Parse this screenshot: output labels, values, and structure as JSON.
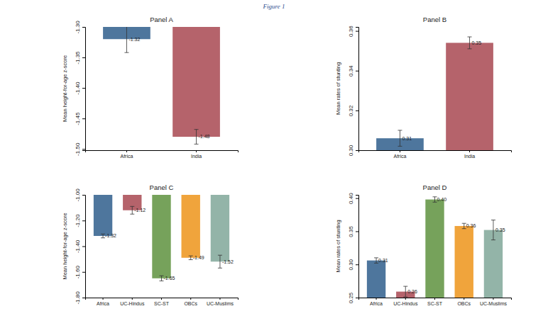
{
  "title": "Figure 1",
  "chart_data": [
    {
      "type": "bar",
      "title": "Panel A",
      "y_label": "Mean height-for-age z-score",
      "categories": [
        "Africa",
        "India"
      ],
      "values": [
        -1.32,
        -1.48
      ],
      "errors": [
        0.022,
        0.012
      ],
      "colors": [
        "#4e769d",
        "#b5636b"
      ],
      "data_labels": true,
      "ylim": [
        -1.502,
        -1.3
      ],
      "yticks": [
        {
          "value": -1.5,
          "label": "-1.50"
        },
        -1.45,
        {
          "value": -1.4,
          "label": "-1.40"
        },
        -1.35,
        {
          "value": -1.3,
          "label": "-1.30"
        }
      ]
    },
    {
      "type": "bar",
      "title": "Panel B",
      "y_label": "Mean rates of stunting",
      "categories": [
        "Africa",
        "India"
      ],
      "values": [
        0.306,
        0.354
      ],
      "value_labels": [
        "0.31",
        "0.35"
      ],
      "errors": [
        0.004,
        0.003
      ],
      "colors": [
        "#4e769d",
        "#b5636b"
      ],
      "data_labels": true,
      "ylim": [
        0.3,
        0.362
      ],
      "yticks": [
        {
          "value": 0.3,
          "label": "0.30"
        },
        0.32,
        0.34,
        0.36
      ]
    },
    {
      "type": "bar",
      "title": "Panel C",
      "y_label": "Mean height-for-age z-score",
      "categories": [
        "Africa",
        "UC-Hindus",
        "SC-ST",
        "OBCs",
        "UC-Muslims"
      ],
      "values": [
        -1.32,
        -1.12,
        -1.65,
        -1.49,
        -1.52
      ],
      "errors": [
        0.015,
        0.03,
        0.02,
        0.015,
        0.05
      ],
      "colors": [
        "#4e769d",
        "#b5636b",
        "#76a25b",
        "#f0a43c",
        "#93b4a8"
      ],
      "data_labels": true,
      "ylim": [
        -1.8,
        -1.0
      ],
      "yticks": [
        {
          "value": -1.0,
          "label": "-1.00"
        },
        {
          "value": -1.2,
          "label": "-1.20"
        },
        {
          "value": -1.4,
          "label": "-1.40"
        },
        {
          "value": -1.6,
          "label": "-1.60"
        },
        {
          "value": -1.8,
          "label": "-1.80"
        }
      ]
    },
    {
      "type": "bar",
      "title": "Panel D",
      "y_label": "Mean rates of stunting",
      "categories": [
        "Africa",
        "UC-Hindus",
        "SC-ST",
        "OBCs",
        "UC-Muslims"
      ],
      "values": [
        0.306,
        0.259,
        0.398,
        0.358,
        0.352
      ],
      "value_labels": [
        "0.31",
        "0.26",
        "0.40",
        "0.36",
        "0.35"
      ],
      "errors": [
        0.004,
        0.008,
        0.004,
        0.004,
        0.015
      ],
      "colors": [
        "#4e769d",
        "#b5636b",
        "#76a25b",
        "#f0a43c",
        "#93b4a8"
      ],
      "data_labels": true,
      "ylim": [
        0.25,
        0.405
      ],
      "yticks": [
        0.25,
        {
          "value": 0.3,
          "label": "0.30"
        },
        0.35,
        {
          "value": 0.4,
          "label": "0.40"
        }
      ]
    }
  ]
}
